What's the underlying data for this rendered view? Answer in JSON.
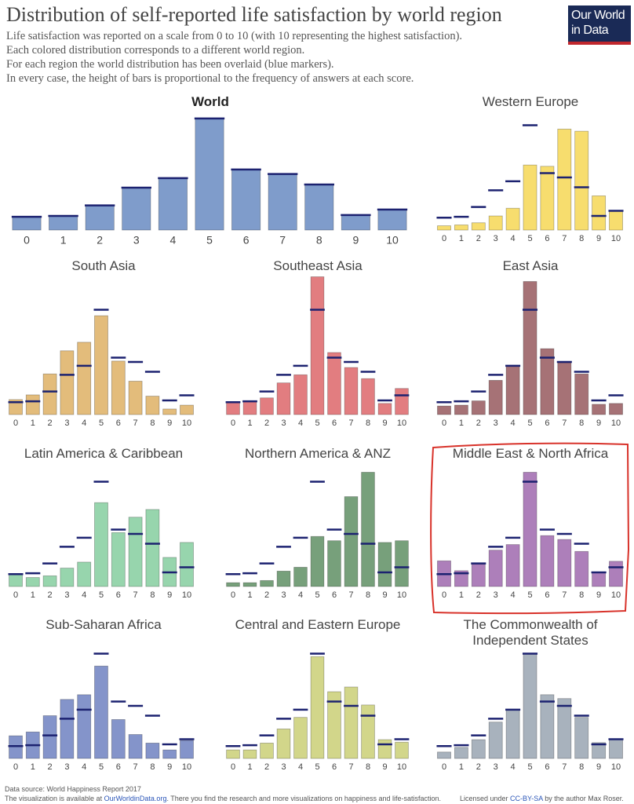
{
  "title": "Distribution of self-reported life satisfaction by world region",
  "subtitle": [
    "Life satisfaction was reported on a scale from 0 to 10 (with 10 representing the highest satisfaction).",
    "Each colored distribution corresponds to a different world region.",
    "For each region the world distribution has been overlaid (blue markers).",
    "In every case, the height of bars is proportional to the frequency of answers at each score."
  ],
  "logo": [
    "Our World",
    "in Data"
  ],
  "source": "Data source: World Happiness Report 2017",
  "footer": [
    "The visualization is available at ",
    "OurWorldinData.org",
    ". There you find the research and more visualizations on happiness and life-satisfaction."
  ],
  "license": [
    "Licensed under ",
    "CC-BY-SA",
    " by the author Max Roser."
  ],
  "chart_data": [
    {
      "type": "bar",
      "title": "World",
      "categories": [
        "0",
        "1",
        "2",
        "3",
        "4",
        "5",
        "6",
        "7",
        "8",
        "9",
        "10"
      ],
      "values": [
        2.9,
        3.1,
        5.4,
        9.3,
        11.4,
        24.5,
        13.3,
        12.3,
        10.0,
        3.3,
        4.5
      ],
      "color": "#7f9ccb",
      "marker_color": "#1c2270"
    },
    {
      "type": "bar",
      "title": "Western Europe",
      "categories": [
        "0",
        "1",
        "2",
        "3",
        "4",
        "5",
        "6",
        "7",
        "8",
        "9",
        "10"
      ],
      "values": [
        1.0,
        1.2,
        1.7,
        3.3,
        5.1,
        15.2,
        14.9,
        23.6,
        23.1,
        8.0,
        4.5
      ],
      "color": "#f7dd6e"
    },
    {
      "type": "bar",
      "title": "South Asia",
      "categories": [
        "0",
        "1",
        "2",
        "3",
        "4",
        "5",
        "6",
        "7",
        "8",
        "9",
        "10"
      ],
      "values": [
        3.5,
        4.6,
        9.5,
        14.9,
        16.9,
        23.1,
        12.5,
        7.8,
        4.3,
        1.3,
        2.2
      ],
      "color": "#e3bc7b"
    },
    {
      "type": "bar",
      "title": "Southeast Asia",
      "categories": [
        "0",
        "1",
        "2",
        "3",
        "4",
        "5",
        "6",
        "7",
        "8",
        "9",
        "10"
      ],
      "values": [
        2.8,
        3.0,
        3.9,
        7.4,
        9.3,
        32.2,
        14.5,
        11.0,
        8.4,
        2.6,
        6.1
      ],
      "color": "#e27d80"
    },
    {
      "type": "bar",
      "title": "East Asia",
      "categories": [
        "0",
        "1",
        "2",
        "3",
        "4",
        "5",
        "6",
        "7",
        "8",
        "9",
        "10"
      ],
      "values": [
        2.0,
        2.2,
        3.2,
        8.0,
        11.5,
        31.1,
        15.4,
        12.1,
        9.5,
        2.4,
        2.6
      ],
      "color": "#a67276"
    },
    {
      "type": "bar",
      "title": "Latin America & Caribbean",
      "categories": [
        "0",
        "1",
        "2",
        "3",
        "4",
        "5",
        "6",
        "7",
        "8",
        "9",
        "10"
      ],
      "values": [
        2.8,
        2.1,
        2.5,
        4.3,
        5.7,
        19.6,
        12.6,
        16.2,
        18.0,
        6.8,
        10.3
      ],
      "color": "#97d5ad"
    },
    {
      "type": "bar",
      "title": "Northern America & ANZ",
      "categories": [
        "0",
        "1",
        "2",
        "3",
        "4",
        "5",
        "6",
        "7",
        "8",
        "9",
        "10"
      ],
      "values": [
        0.9,
        0.9,
        1.4,
        3.6,
        4.5,
        11.7,
        10.7,
        21.0,
        26.7,
        10.3,
        10.7
      ],
      "color": "#77a07b"
    },
    {
      "type": "bar",
      "title": "Middle East & North Africa",
      "categories": [
        "0",
        "1",
        "2",
        "3",
        "4",
        "5",
        "6",
        "7",
        "8",
        "9",
        "10"
      ],
      "values": [
        6.0,
        3.7,
        5.2,
        8.5,
        9.8,
        26.7,
        11.9,
        11.0,
        8.2,
        3.2,
        5.9
      ],
      "color": "#ad7fba"
    },
    {
      "type": "bar",
      "title": "Sub-Saharan Africa",
      "categories": [
        "0",
        "1",
        "2",
        "3",
        "4",
        "5",
        "6",
        "7",
        "8",
        "9",
        "10"
      ],
      "values": [
        5.3,
        6.2,
        10.0,
        13.8,
        14.9,
        21.6,
        9.1,
        5.6,
        3.6,
        2.0,
        4.2
      ],
      "color": "#8494ca"
    },
    {
      "type": "bar",
      "title": "Central and Eastern Europe",
      "categories": [
        "0",
        "1",
        "2",
        "3",
        "4",
        "5",
        "6",
        "7",
        "8",
        "9",
        "10"
      ],
      "values": [
        2.0,
        2.0,
        3.6,
        6.9,
        9.6,
        23.8,
        15.6,
        16.7,
        12.5,
        4.4,
        3.8
      ],
      "color": "#d2d68a"
    },
    {
      "type": "bar",
      "title": "The Commonwealth of Independent States",
      "categories": [
        "0",
        "1",
        "2",
        "3",
        "4",
        "5",
        "6",
        "7",
        "8",
        "9",
        "10"
      ],
      "values": [
        1.5,
        2.6,
        4.4,
        8.5,
        11.3,
        24.5,
        14.9,
        14.0,
        9.6,
        3.7,
        4.6
      ],
      "color": "#a8b2bd"
    }
  ]
}
